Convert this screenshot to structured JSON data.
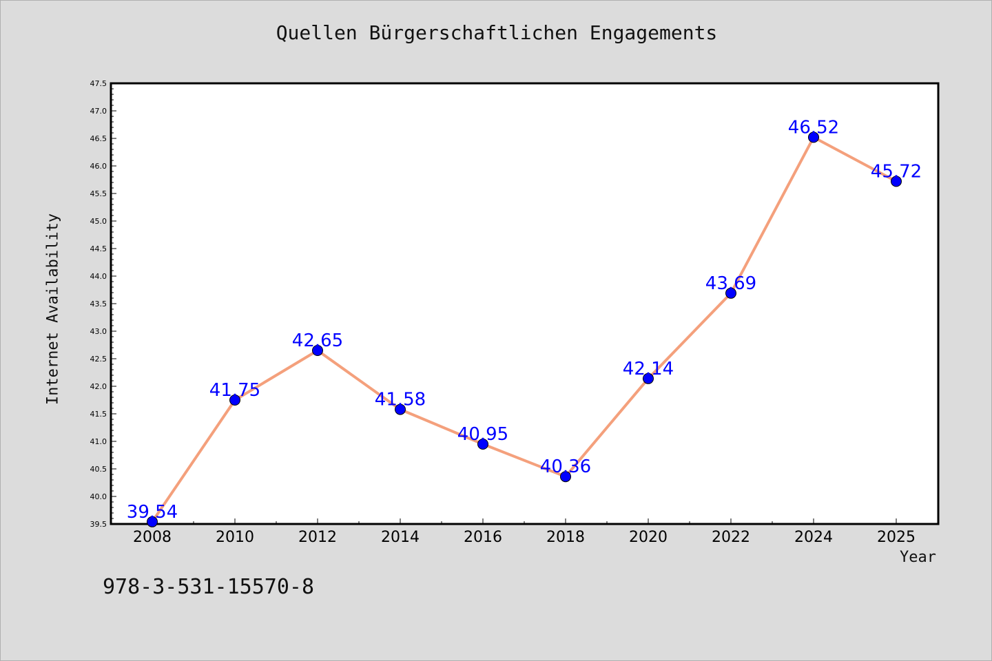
{
  "chart_data": {
    "type": "line",
    "title": "Quellen Bürgerschaftlichen Engagements",
    "xlabel": "Year",
    "ylabel": "Internet Availability",
    "categories": [
      "2008",
      "2010",
      "2012",
      "2014",
      "2016",
      "2018",
      "2020",
      "2022",
      "2024",
      "2025"
    ],
    "values": [
      39.54,
      41.75,
      42.65,
      41.58,
      40.95,
      40.36,
      42.14,
      43.69,
      46.52,
      45.72
    ],
    "data_labels": [
      "39.54",
      "41.75",
      "42.65",
      "41.58",
      "40.95",
      "40.36",
      "42.14",
      "43.69",
      "46.52",
      "45.72"
    ],
    "ylim": [
      39.5,
      47.5
    ],
    "yticks": [
      "39.5",
      "40.0",
      "40.5",
      "41.0",
      "41.5",
      "42.0",
      "42.5",
      "43.0",
      "43.5",
      "44.0",
      "44.5",
      "45.0",
      "45.5",
      "46.0",
      "46.5",
      "47.0",
      "47.5"
    ],
    "grid": false,
    "colors": {
      "line": "#f4a07c",
      "marker": "#0000ff",
      "label": "#0000ff",
      "background": "#dcdcdc",
      "plot_bg": "#ffffff"
    }
  },
  "footer_text": "978-3-531-15570-8"
}
